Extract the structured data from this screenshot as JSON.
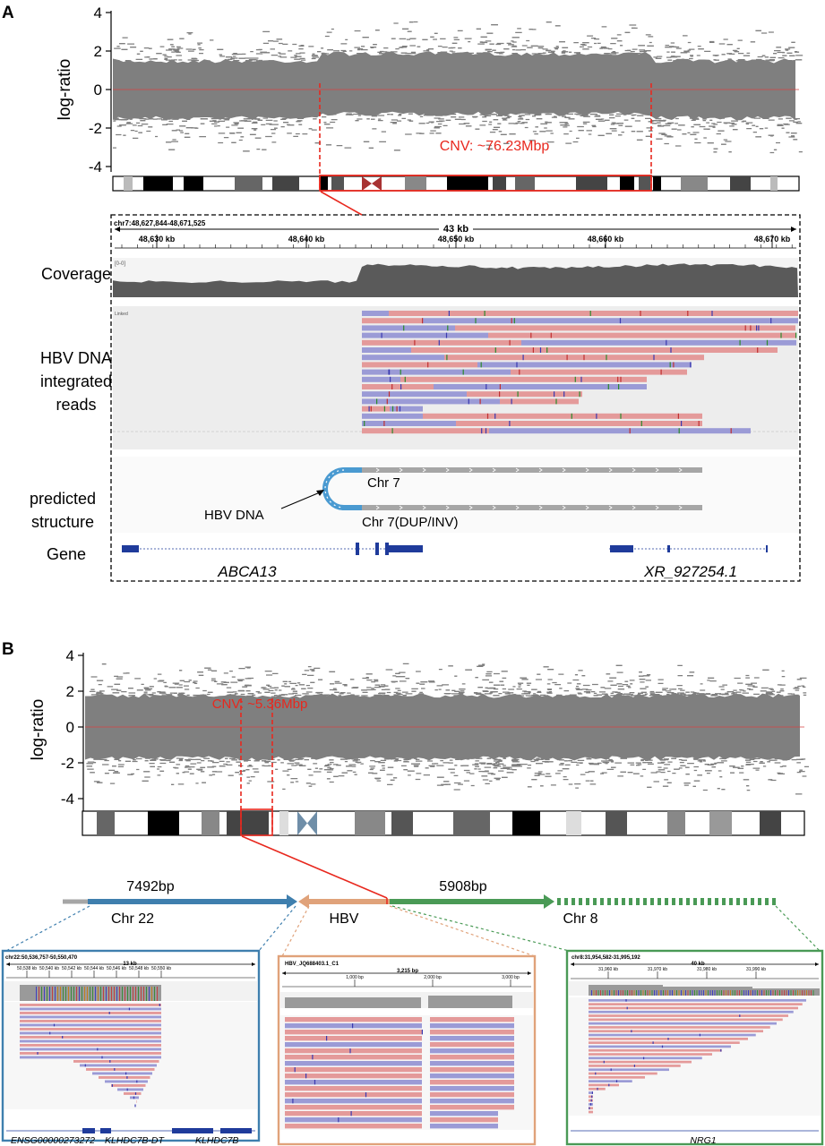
{
  "panel_a": {
    "letter": "A",
    "ylabel": "log-ratio",
    "yticks": [
      "4",
      "2",
      "0",
      "-2",
      "-4"
    ],
    "cnv_label": "CNV: ~76.23Mbp",
    "igv": {
      "locus": "chr7:48,627,844-48,671,525",
      "span": "43 kb",
      "ticks": [
        "48,630 kb",
        "48,640 kb",
        "48,650 kb",
        "48,660 kb",
        "48,670 kb"
      ],
      "coverage_range": "[0-0]",
      "reads_tag": "Linked"
    },
    "row_labels": {
      "coverage": "Coverage",
      "reads": [
        "HBV DNA",
        "integrated",
        "reads"
      ],
      "structure": [
        "predicted",
        "structure"
      ],
      "gene": "Gene"
    },
    "structure": {
      "top_label": "Chr 7",
      "bottom_label": "Chr 7(DUP/INV)",
      "hbv_label": "HBV DNA"
    },
    "genes": [
      "ABCA13",
      "XR_927254.1"
    ]
  },
  "panel_b": {
    "letter": "B",
    "ylabel": "log-ratio",
    "yticks": [
      "4",
      "2",
      "0",
      "-2",
      "-4"
    ],
    "cnv_label": "CNV: ~5.36Mbp",
    "junction": {
      "left_len": "7492bp",
      "right_len": "5908bp",
      "chr_left": "Chr 22",
      "hbv": "HBV",
      "chr_right": "Chr 8"
    },
    "insets": [
      {
        "locus": "chr22:50,536,757-50,550,470",
        "span": "13 kb",
        "ticks": [
          "50,538 kb",
          "50,540 kb",
          "50,542 kb",
          "50,544 kb",
          "50,546 kb",
          "50,548 kb",
          "50,550 kb"
        ],
        "genes": [
          "ENSG00000273272",
          "KLHDC7B-DT",
          "KLHDC7B"
        ]
      },
      {
        "locus": "HBV_JQ688403.1_C1",
        "span": "3,215 bp",
        "ticks": [
          "1,000 bp",
          "2,000 bp",
          "3,000 bp"
        ],
        "genes": []
      },
      {
        "locus": "chr8:31,954,582-31,995,192",
        "span": "40 kb",
        "ticks": [
          "31,960 kb",
          "31,970 kb",
          "31,980 kb",
          "31,990 kb"
        ],
        "genes": [
          "NRG1"
        ]
      }
    ]
  },
  "colors": {
    "scatter": "#7f7f7f",
    "cnv_red": "#e8281e",
    "read_pink": "#e49a9a",
    "read_blue": "#9b9bd6",
    "gene_blue": "#1f3b9b",
    "chr22_blue": "#3f7fae",
    "hbv_orange": "#e0a27a",
    "chr8_green": "#4a9a56",
    "hbv_arc": "#4a9ad1"
  }
}
